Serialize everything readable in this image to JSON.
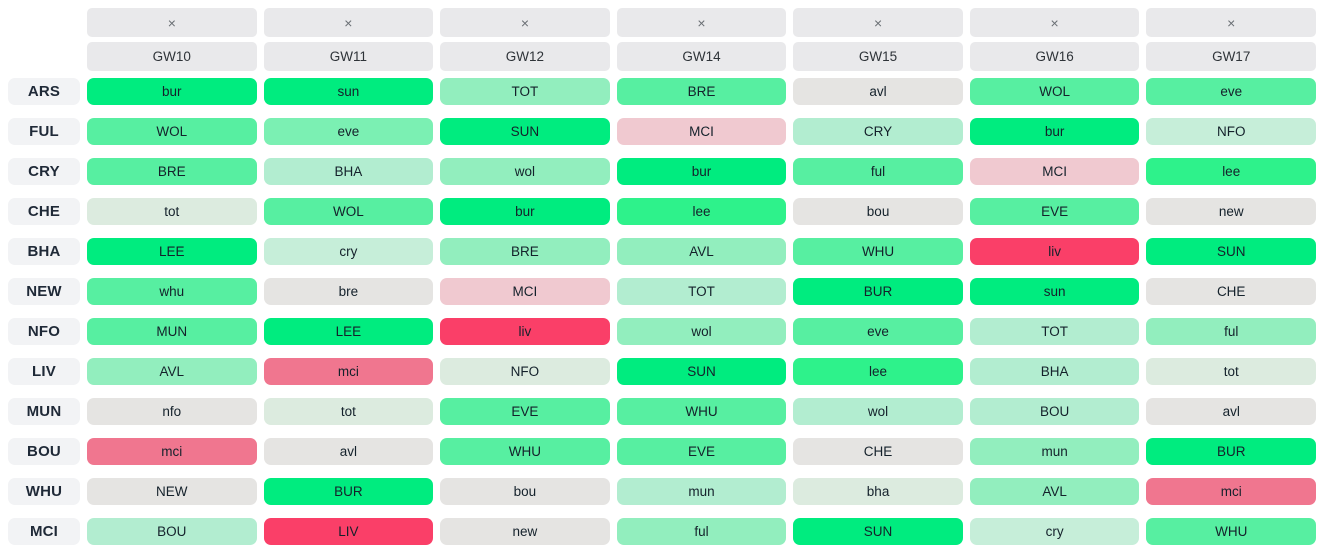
{
  "ticker": {
    "close_icon": "×",
    "columns": [
      "GW10",
      "GW11",
      "GW12",
      "GW14",
      "GW15",
      "GW16",
      "GW17"
    ],
    "palette": {
      "easiest": "#00ec7f",
      "very_easy": "#2ef28b",
      "easy": "#57efa1",
      "fairly_easy": "#92eebe",
      "moderate_easy": "#b2edd0",
      "mild": "#c6eed9",
      "neutral_green": "#dcebdf",
      "neutral": "#e5e4e2",
      "fairly_hard": "#f0c9d0",
      "hard": "#f0768f",
      "hardest": "#fa3f68",
      "header_bg": "#e9e9eb",
      "team_label_bg": "#f2f3f5"
    },
    "rows": [
      {
        "team": "ARS",
        "cells": [
          {
            "t": "bur",
            "c": "#00ec7f"
          },
          {
            "t": "sun",
            "c": "#00ec7f"
          },
          {
            "t": "TOT",
            "c": "#92eebe"
          },
          {
            "t": "BRE",
            "c": "#57efa1"
          },
          {
            "t": "avl",
            "c": "#e5e4e2"
          },
          {
            "t": "WOL",
            "c": "#57efa1"
          },
          {
            "t": "eve",
            "c": "#57efa1"
          }
        ]
      },
      {
        "team": "FUL",
        "cells": [
          {
            "t": "WOL",
            "c": "#57efa1"
          },
          {
            "t": "eve",
            "c": "#7bf0b3"
          },
          {
            "t": "SUN",
            "c": "#00ec7f"
          },
          {
            "t": "MCI",
            "c": "#f0c9d0"
          },
          {
            "t": "CRY",
            "c": "#b2edd0"
          },
          {
            "t": "bur",
            "c": "#00ec7f"
          },
          {
            "t": "NFO",
            "c": "#c6eed9"
          }
        ]
      },
      {
        "team": "CRY",
        "cells": [
          {
            "t": "BRE",
            "c": "#57efa1"
          },
          {
            "t": "BHA",
            "c": "#b2edd0"
          },
          {
            "t": "wol",
            "c": "#92eebe"
          },
          {
            "t": "bur",
            "c": "#00ec7f"
          },
          {
            "t": "ful",
            "c": "#57efa1"
          },
          {
            "t": "MCI",
            "c": "#f0c9d0"
          },
          {
            "t": "lee",
            "c": "#2ef28b"
          }
        ]
      },
      {
        "team": "CHE",
        "cells": [
          {
            "t": "tot",
            "c": "#dcebdf"
          },
          {
            "t": "WOL",
            "c": "#57efa1"
          },
          {
            "t": "bur",
            "c": "#00ec7f"
          },
          {
            "t": "lee",
            "c": "#2ef28b"
          },
          {
            "t": "bou",
            "c": "#e5e4e2"
          },
          {
            "t": "EVE",
            "c": "#57efa1"
          },
          {
            "t": "new",
            "c": "#e5e4e2"
          }
        ]
      },
      {
        "team": "BHA",
        "cells": [
          {
            "t": "LEE",
            "c": "#00ec7f"
          },
          {
            "t": "cry",
            "c": "#c6eed9"
          },
          {
            "t": "BRE",
            "c": "#92eebe"
          },
          {
            "t": "AVL",
            "c": "#92eebe"
          },
          {
            "t": "WHU",
            "c": "#57efa1"
          },
          {
            "t": "liv",
            "c": "#fa3f68"
          },
          {
            "t": "SUN",
            "c": "#00ec7f"
          }
        ]
      },
      {
        "team": "NEW",
        "cells": [
          {
            "t": "whu",
            "c": "#57efa1"
          },
          {
            "t": "bre",
            "c": "#e5e4e2"
          },
          {
            "t": "MCI",
            "c": "#f0c9d0"
          },
          {
            "t": "TOT",
            "c": "#b2edd0"
          },
          {
            "t": "BUR",
            "c": "#00ec7f"
          },
          {
            "t": "sun",
            "c": "#00ec7f"
          },
          {
            "t": "CHE",
            "c": "#e5e4e2"
          }
        ]
      },
      {
        "team": "NFO",
        "cells": [
          {
            "t": "MUN",
            "c": "#57efa1"
          },
          {
            "t": "LEE",
            "c": "#00ec7f"
          },
          {
            "t": "liv",
            "c": "#fa3f68"
          },
          {
            "t": "wol",
            "c": "#92eebe"
          },
          {
            "t": "eve",
            "c": "#57efa1"
          },
          {
            "t": "TOT",
            "c": "#b2edd0"
          },
          {
            "t": "ful",
            "c": "#92eebe"
          }
        ]
      },
      {
        "team": "LIV",
        "cells": [
          {
            "t": "AVL",
            "c": "#92eebe"
          },
          {
            "t": "mci",
            "c": "#f0768f"
          },
          {
            "t": "NFO",
            "c": "#dcebdf"
          },
          {
            "t": "SUN",
            "c": "#00ec7f"
          },
          {
            "t": "lee",
            "c": "#2ef28b"
          },
          {
            "t": "BHA",
            "c": "#b2edd0"
          },
          {
            "t": "tot",
            "c": "#dcebdf"
          }
        ]
      },
      {
        "team": "MUN",
        "cells": [
          {
            "t": "nfo",
            "c": "#e5e4e2"
          },
          {
            "t": "tot",
            "c": "#dcebdf"
          },
          {
            "t": "EVE",
            "c": "#57efa1"
          },
          {
            "t": "WHU",
            "c": "#57efa1"
          },
          {
            "t": "wol",
            "c": "#b2edd0"
          },
          {
            "t": "BOU",
            "c": "#b2edd0"
          },
          {
            "t": "avl",
            "c": "#e5e4e2"
          }
        ]
      },
      {
        "team": "BOU",
        "cells": [
          {
            "t": "mci",
            "c": "#f0768f"
          },
          {
            "t": "avl",
            "c": "#e5e4e2"
          },
          {
            "t": "WHU",
            "c": "#57efa1"
          },
          {
            "t": "EVE",
            "c": "#57efa1"
          },
          {
            "t": "CHE",
            "c": "#e5e4e2"
          },
          {
            "t": "mun",
            "c": "#92eebe"
          },
          {
            "t": "BUR",
            "c": "#00ec7f"
          }
        ]
      },
      {
        "team": "WHU",
        "cells": [
          {
            "t": "NEW",
            "c": "#e5e4e2"
          },
          {
            "t": "BUR",
            "c": "#00ec7f"
          },
          {
            "t": "bou",
            "c": "#e5e4e2"
          },
          {
            "t": "mun",
            "c": "#b2edd0"
          },
          {
            "t": "bha",
            "c": "#dcebdf"
          },
          {
            "t": "AVL",
            "c": "#92eebe"
          },
          {
            "t": "mci",
            "c": "#f0768f"
          }
        ]
      },
      {
        "team": "MCI",
        "cells": [
          {
            "t": "BOU",
            "c": "#b2edd0"
          },
          {
            "t": "LIV",
            "c": "#fa3f68"
          },
          {
            "t": "new",
            "c": "#e5e4e2"
          },
          {
            "t": "ful",
            "c": "#92eebe"
          },
          {
            "t": "SUN",
            "c": "#00ec7f"
          },
          {
            "t": "cry",
            "c": "#c6eed9"
          },
          {
            "t": "WHU",
            "c": "#57efa1"
          }
        ]
      }
    ]
  }
}
